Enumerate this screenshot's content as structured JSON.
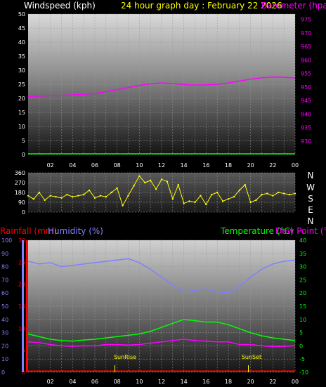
{
  "header": {
    "windspeed_label": "Windspeed (kph)",
    "title": "24 hour graph day : February 22 2026",
    "barometer_label": "Barometer (hpa)"
  },
  "x_ticks": [
    "02",
    "04",
    "06",
    "08",
    "10",
    "12",
    "14",
    "16",
    "18",
    "20",
    "22",
    "00"
  ],
  "compass": [
    "N",
    "W",
    "S",
    "E",
    "N"
  ],
  "labels": {
    "rainfall": "Rainfall (mm)",
    "humidity": "Humidity (%)",
    "temperature": "Temperature (°C)",
    "dewpoint": "Dew Point (°C)",
    "sunrise": "SunRise",
    "sunset": "SunSet"
  },
  "colors": {
    "wind": "#00ff00",
    "barometer": "#ff00ff",
    "direction": "#ffff00",
    "rainfall": "#ff0000",
    "humidity": "#8080ff",
    "temperature": "#00ff00",
    "dewpoint": "#ff00ff",
    "title": "#ffff00"
  },
  "chart_data": [
    {
      "type": "line",
      "panel": "wind-barometer",
      "xlabel": "",
      "x": [
        0,
        1,
        2,
        3,
        4,
        5,
        6,
        7,
        8,
        9,
        10,
        11,
        12,
        13,
        14,
        15,
        16,
        17,
        18,
        19,
        20,
        21,
        22,
        23,
        24
      ],
      "y_left": {
        "label": "Windspeed (kph)",
        "ylim": [
          0,
          50
        ],
        "ticks": [
          0,
          5,
          10,
          15,
          20,
          25,
          30,
          35,
          40,
          45,
          50
        ]
      },
      "y_right": {
        "label": "Barometer (hpa)",
        "ylim": [
          925,
          977
        ],
        "ticks": [
          930,
          935,
          940,
          945,
          950,
          955,
          960,
          965,
          970,
          975
        ]
      },
      "series": [
        {
          "name": "Windspeed (kph)",
          "axis": "left",
          "values": [
            0,
            0,
            0,
            0,
            0,
            0,
            0,
            0,
            0,
            0,
            0,
            0,
            0,
            0,
            0,
            0,
            0,
            0,
            0,
            0,
            0,
            0,
            0,
            0,
            0
          ]
        },
        {
          "name": "Barometer (hpa)",
          "axis": "right",
          "values": [
            946.5,
            946.6,
            946.8,
            946.9,
            947.1,
            947.3,
            947.6,
            948.3,
            949.0,
            949.8,
            950.6,
            951.2,
            951.5,
            951.3,
            950.9,
            950.7,
            950.8,
            951.0,
            951.5,
            952.2,
            952.9,
            953.4,
            953.7,
            953.6,
            953.3
          ]
        }
      ]
    },
    {
      "type": "scatter",
      "panel": "wind-direction",
      "ylim": [
        0,
        360
      ],
      "yticks": [
        0,
        90,
        180,
        270,
        360
      ],
      "series": [
        {
          "name": "Wind direction",
          "x": [
            0,
            0.5,
            1,
            1.5,
            2,
            2.5,
            3,
            3.5,
            4,
            4.5,
            5,
            5.5,
            6,
            6.5,
            7,
            7.5,
            8,
            8.5,
            9,
            9.5,
            10,
            10.5,
            11,
            11.5,
            12,
            12.5,
            13,
            13.5,
            14,
            14.5,
            15,
            15.5,
            16,
            16.5,
            17,
            17.5,
            18,
            18.5,
            19,
            19.5,
            20,
            20.5,
            21,
            21.5,
            22,
            22.5,
            23,
            23.5,
            24
          ],
          "values": [
            150,
            120,
            180,
            110,
            150,
            140,
            130,
            160,
            140,
            150,
            160,
            200,
            130,
            150,
            140,
            180,
            220,
            60,
            150,
            240,
            330,
            270,
            290,
            210,
            300,
            280,
            120,
            250,
            80,
            100,
            90,
            150,
            70,
            160,
            180,
            100,
            120,
            140,
            200,
            250,
            90,
            110,
            160,
            170,
            150,
            180,
            170,
            160,
            170
          ]
        }
      ]
    },
    {
      "type": "line",
      "panel": "rain-humidity-temperature",
      "x": [
        0,
        1,
        2,
        3,
        4,
        5,
        6,
        7,
        8,
        9,
        10,
        11,
        12,
        13,
        14,
        15,
        16,
        17,
        18,
        19,
        20,
        21,
        22,
        23,
        24
      ],
      "y_left_rain": {
        "label": "Rainfall (mm)",
        "ylim": [
          0,
          30
        ],
        "ticks": [
          0,
          5,
          10,
          15,
          20,
          25,
          30
        ]
      },
      "y_left_humidity": {
        "label": "Humidity (%)",
        "ylim": [
          0,
          100
        ],
        "ticks": [
          0,
          10,
          20,
          30,
          40,
          50,
          60,
          70,
          80,
          90,
          100
        ]
      },
      "y_right": {
        "label": "Temperature (°C) / Dew Point (°C)",
        "ylim": [
          -10,
          40
        ],
        "ticks": [
          -10,
          -5,
          0,
          5,
          10,
          15,
          20,
          25,
          30,
          35,
          40
        ]
      },
      "annotations": [
        "SunRise",
        "SunSet"
      ],
      "series": [
        {
          "name": "Rainfall (mm)",
          "axis": "rain",
          "values": [
            0,
            0,
            0,
            0,
            0,
            0,
            0,
            0,
            0,
            0,
            0,
            0,
            0,
            0,
            0,
            0,
            0,
            0,
            0,
            0,
            0,
            0,
            0,
            0,
            0
          ]
        },
        {
          "name": "Humidity (%)",
          "axis": "humidity",
          "values": [
            84,
            82,
            83,
            80,
            81,
            82,
            83,
            84,
            85,
            86,
            83,
            78,
            72,
            66,
            61,
            62,
            63,
            61,
            60,
            65,
            72,
            78,
            82,
            84,
            85
          ]
        },
        {
          "name": "Temperature (°C)",
          "axis": "right",
          "values": [
            4.5,
            3.5,
            2.5,
            2.0,
            1.8,
            2.2,
            2.5,
            3.0,
            3.5,
            4.0,
            4.5,
            5.5,
            7.0,
            8.5,
            10.0,
            9.5,
            9.0,
            9.0,
            8.0,
            6.5,
            5.0,
            3.8,
            3.0,
            2.5,
            2.0
          ]
        },
        {
          "name": "Dew Point (°C)",
          "axis": "right",
          "values": [
            1.5,
            1.2,
            0.5,
            0.0,
            -0.2,
            0.0,
            0.0,
            0.5,
            0.5,
            0.3,
            0.5,
            1.0,
            1.5,
            2.0,
            2.5,
            2.0,
            1.8,
            1.5,
            1.5,
            0.5,
            0.5,
            0.0,
            -0.3,
            -0.2,
            0.0
          ]
        }
      ]
    }
  ]
}
